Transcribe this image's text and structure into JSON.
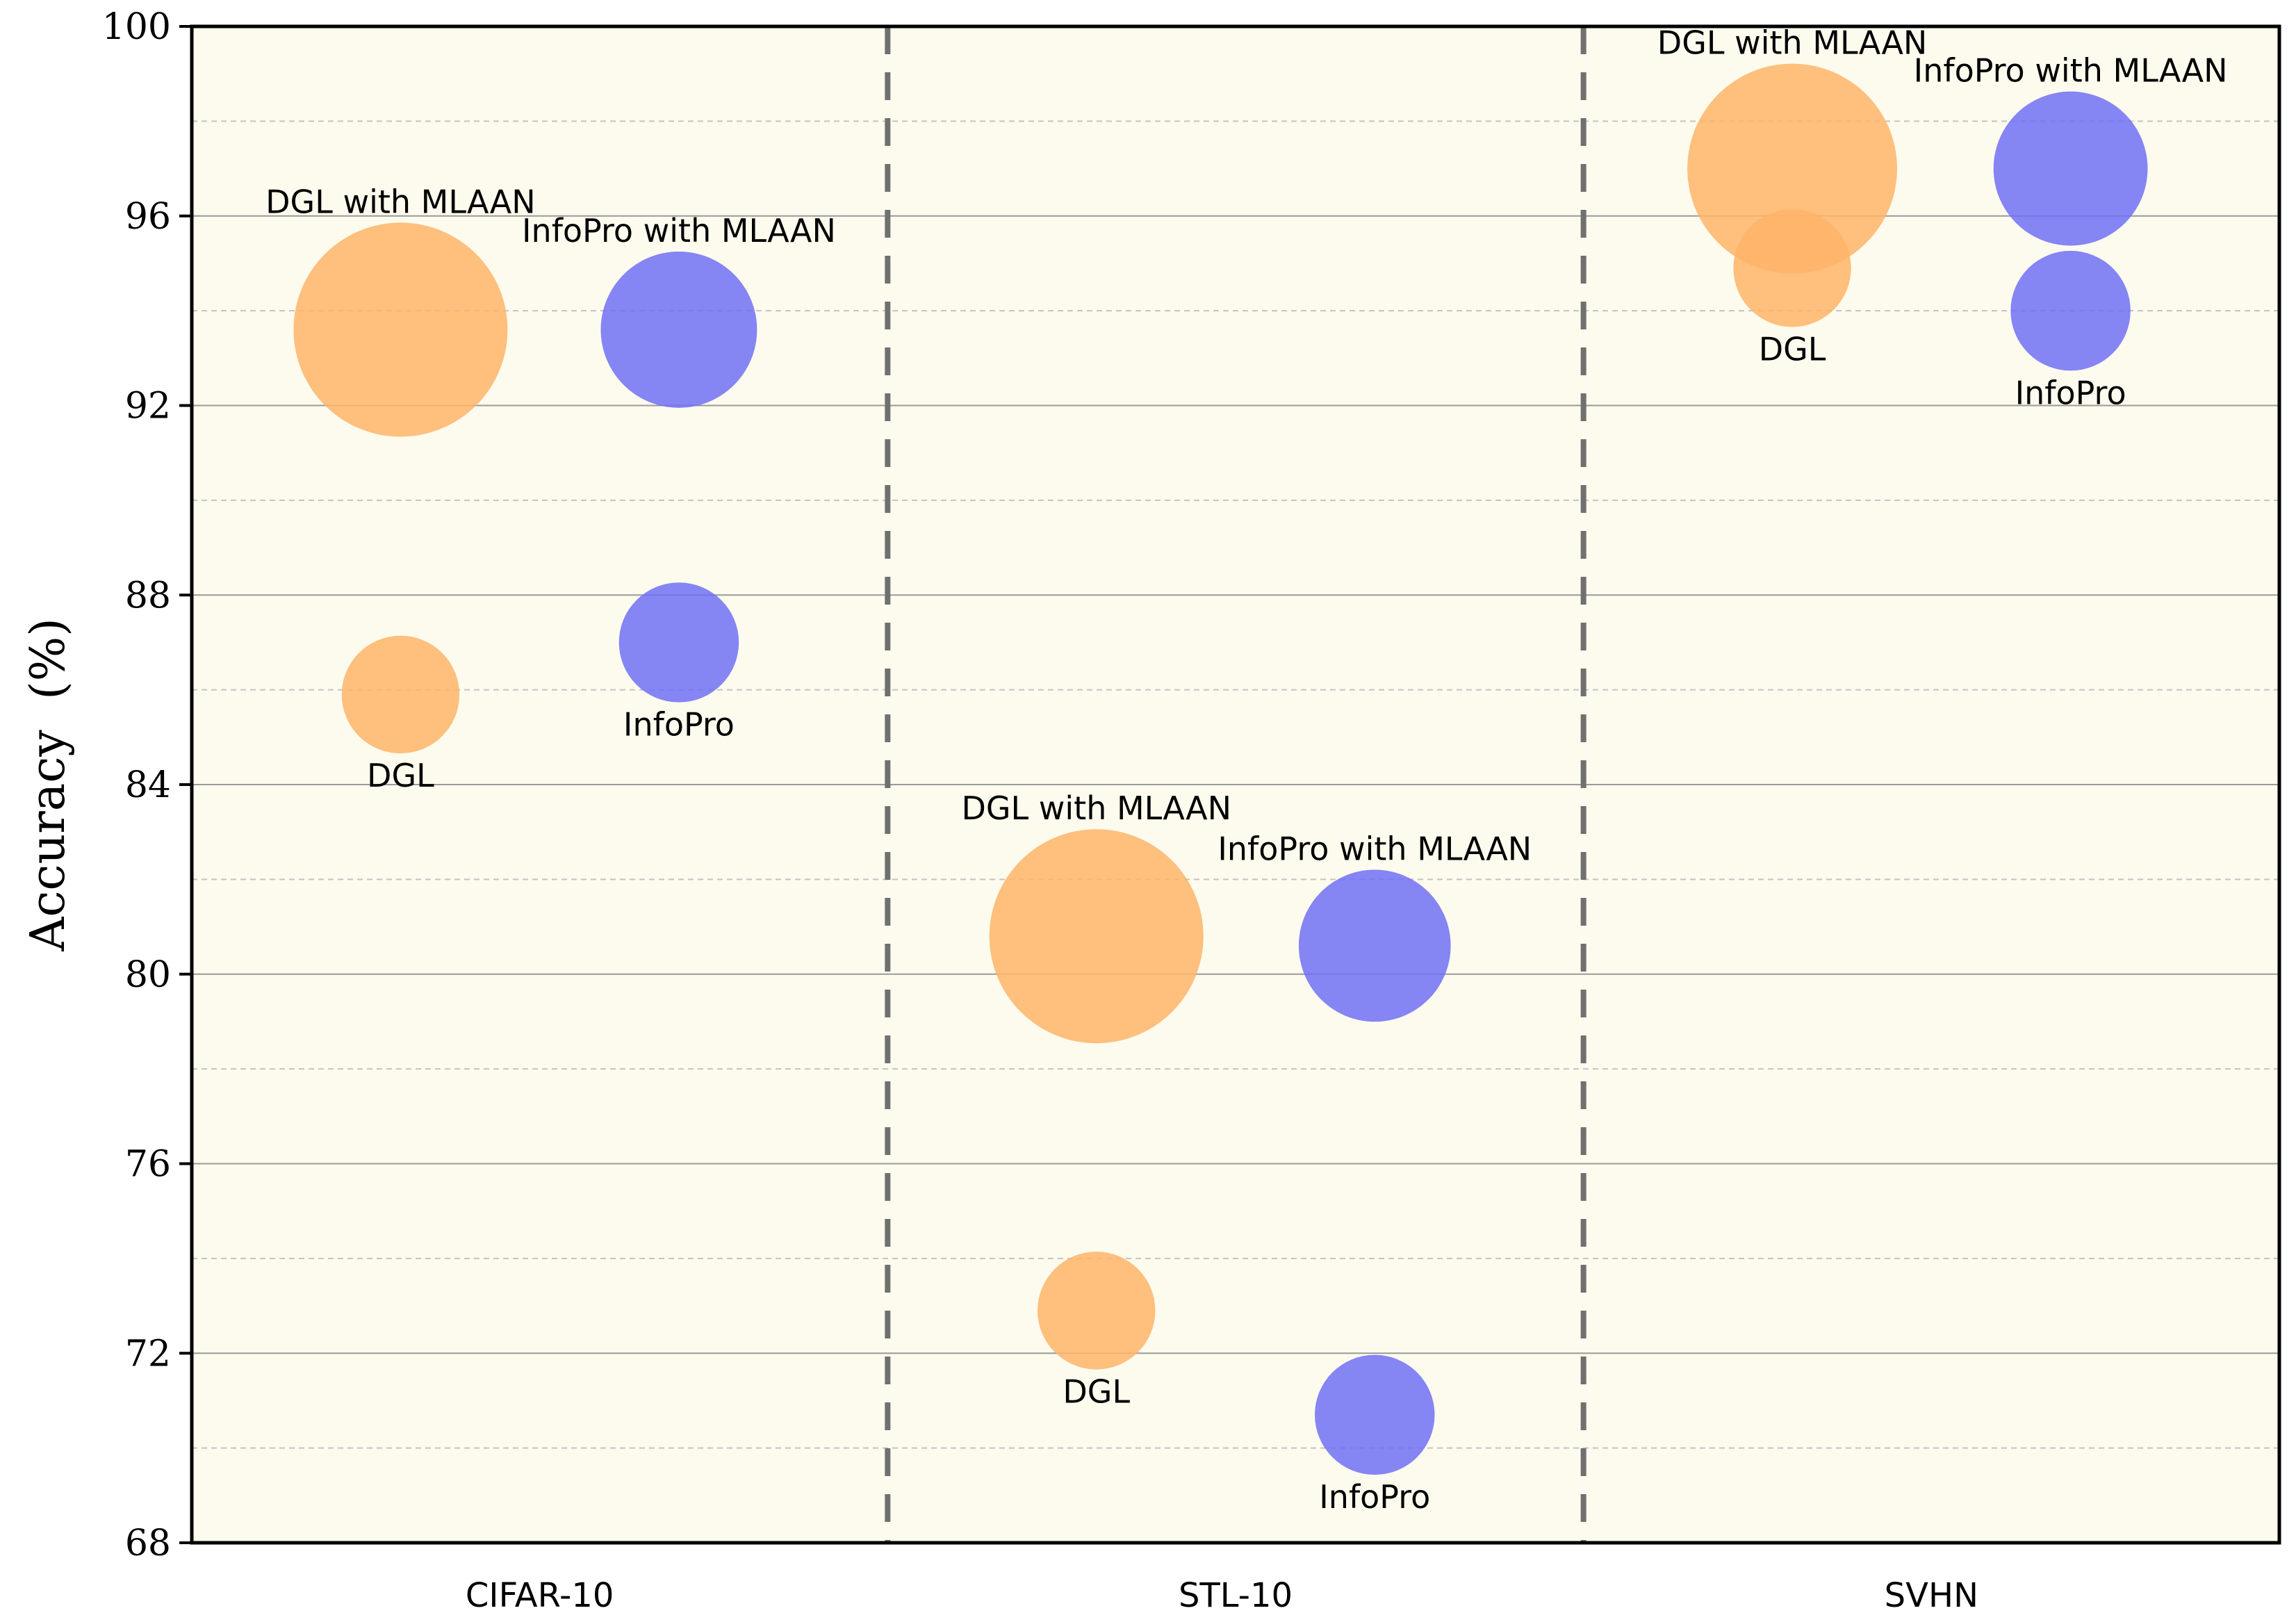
{
  "chart_data": {
    "type": "scatter",
    "subtype": "bubble",
    "title": "",
    "xlabel": "",
    "ylabel": "Accuracy  (%)",
    "categories": [
      "CIFAR-10",
      "STL-10",
      "SVHN"
    ],
    "ylim": [
      68,
      100
    ],
    "yticks": [
      68,
      72,
      76,
      80,
      84,
      88,
      92,
      96,
      100
    ],
    "grid": true,
    "colors": {
      "DGL": "#ffb469",
      "InfoPro": "#7070f5",
      "background": "#fcfbee"
    },
    "series": [
      {
        "name": "DGL",
        "color_key": "DGL",
        "points": [
          {
            "category": "CIFAR-10",
            "value": 85.9,
            "label": "DGL",
            "label_pos": "below",
            "size": 0.55
          },
          {
            "category": "STL-10",
            "value": 72.9,
            "label": "DGL",
            "label_pos": "below",
            "size": 0.55
          },
          {
            "category": "SVHN",
            "value": 94.9,
            "label": "DGL",
            "label_pos": "below",
            "size": 0.55
          }
        ]
      },
      {
        "name": "DGL with MLAAN",
        "color_key": "DGL",
        "points": [
          {
            "category": "CIFAR-10",
            "value": 93.6,
            "label": "DGL with MLAAN",
            "label_pos": "above",
            "size": 1.0
          },
          {
            "category": "STL-10",
            "value": 80.8,
            "label": "DGL with MLAAN",
            "label_pos": "above",
            "size": 1.0
          },
          {
            "category": "SVHN",
            "value": 97.0,
            "label": "DGL with MLAAN",
            "label_pos": "above",
            "size": 0.98
          }
        ]
      },
      {
        "name": "InfoPro",
        "color_key": "InfoPro",
        "points": [
          {
            "category": "CIFAR-10",
            "value": 87.0,
            "label": "InfoPro",
            "label_pos": "below",
            "size": 0.56
          },
          {
            "category": "STL-10",
            "value": 70.7,
            "label": "InfoPro",
            "label_pos": "below",
            "size": 0.56
          },
          {
            "category": "SVHN",
            "value": 94.0,
            "label": "InfoPro",
            "label_pos": "below",
            "size": 0.56
          }
        ]
      },
      {
        "name": "InfoPro with MLAAN",
        "color_key": "InfoPro",
        "points": [
          {
            "category": "CIFAR-10",
            "value": 93.6,
            "label": "InfoPro with MLAAN",
            "label_pos": "above",
            "size": 0.73
          },
          {
            "category": "STL-10",
            "value": 80.6,
            "label": "InfoPro with MLAAN",
            "label_pos": "above",
            "size": 0.71
          },
          {
            "category": "SVHN",
            "value": 97.0,
            "label": "InfoPro with MLAAN",
            "label_pos": "above",
            "size": 0.72
          }
        ]
      }
    ]
  }
}
